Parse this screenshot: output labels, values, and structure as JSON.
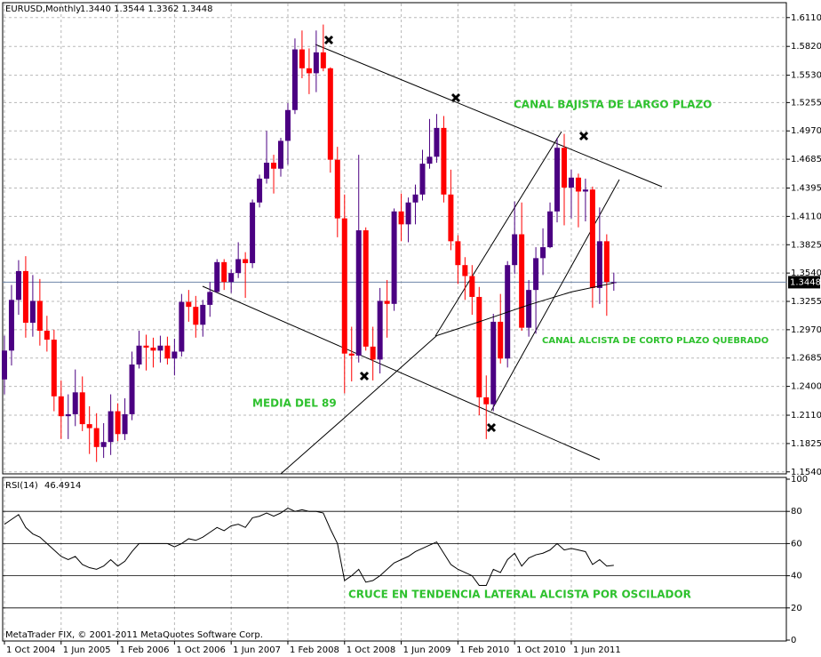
{
  "chart_data": [
    {
      "type": "candlestick",
      "title": "EURUSD,Monthly",
      "ohlc_label": "1.3440 1.3544 1.3362 1.3448",
      "up_color": "#4b0082",
      "down_color": "#ff0000",
      "price_line_color": "#6e86a8",
      "ylim": [
        1.152,
        1.626
      ],
      "xlim": [
        -0.25,
        110.35
      ],
      "grid": true,
      "yticks": [
        {
          "value": 1.611,
          "label": "1.6110"
        },
        {
          "value": 1.582,
          "label": "1.5820"
        },
        {
          "value": 1.553,
          "label": "1.5530"
        },
        1.5255,
        {
          "value": 1.497,
          "label": "1.4970"
        },
        1.4685,
        1.4395,
        {
          "value": 1.411,
          "label": "1.4110"
        },
        1.3825,
        {
          "value": 1.354,
          "label": "1.3540"
        },
        1.3255,
        {
          "value": 1.297,
          "label": "1.2970"
        },
        1.2685,
        {
          "value": 1.24,
          "label": "1.2400"
        },
        {
          "value": 1.211,
          "label": "1.2110"
        },
        1.1825,
        {
          "value": 1.154,
          "label": "1.1540"
        }
      ],
      "open": [
        1.247,
        1.276,
        1.327,
        1.356,
        1.304,
        1.326,
        1.296,
        1.287,
        1.23,
        1.21,
        1.212,
        1.234,
        1.202,
        1.198,
        1.179,
        1.184,
        1.215,
        1.192,
        1.212,
        1.262,
        1.281,
        1.279,
        1.276,
        1.281,
        1.268,
        1.275,
        1.325,
        1.32,
        1.302,
        1.322,
        1.335,
        1.365,
        1.345,
        1.354,
        1.368,
        1.364,
        1.425,
        1.449,
        1.465,
        1.459,
        1.487,
        1.518,
        1.579,
        1.56,
        1.555,
        1.576,
        1.56,
        1.468,
        1.409,
        1.273,
        1.271,
        1.397,
        1.28,
        1.267,
        1.326,
        1.323,
        1.416,
        1.403,
        1.425,
        1.433,
        1.464,
        1.471,
        1.5,
        1.433,
        1.386,
        1.362,
        1.351,
        1.33,
        1.229,
        1.222,
        1.305,
        1.268,
        1.362,
        1.393,
        1.299,
        1.337,
        1.369,
        1.38,
        1.416,
        1.48,
        1.44,
        1.45,
        1.436,
        1.438,
        1.339,
        1.386,
        1.344
      ],
      "high": [
        1.291,
        1.342,
        1.367,
        1.371,
        1.352,
        1.348,
        1.311,
        1.297,
        1.246,
        1.232,
        1.257,
        1.25,
        1.22,
        1.213,
        1.203,
        1.232,
        1.223,
        1.228,
        1.275,
        1.296,
        1.292,
        1.289,
        1.291,
        1.29,
        1.288,
        1.333,
        1.337,
        1.331,
        1.327,
        1.345,
        1.368,
        1.368,
        1.358,
        1.385,
        1.375,
        1.428,
        1.453,
        1.497,
        1.473,
        1.49,
        1.525,
        1.59,
        1.598,
        1.58,
        1.598,
        1.604,
        1.561,
        1.481,
        1.433,
        1.3,
        1.473,
        1.4,
        1.3,
        1.339,
        1.347,
        1.419,
        1.434,
        1.43,
        1.443,
        1.478,
        1.509,
        1.514,
        1.512,
        1.458,
        1.392,
        1.37,
        1.362,
        1.34,
        1.251,
        1.313,
        1.333,
        1.366,
        1.426,
        1.425,
        1.347,
        1.38,
        1.399,
        1.425,
        1.49,
        1.494,
        1.458,
        1.454,
        1.449,
        1.441,
        1.42,
        1.393,
        1.3544
      ],
      "low": [
        1.232,
        1.261,
        1.312,
        1.289,
        1.29,
        1.281,
        1.275,
        1.215,
        1.187,
        1.187,
        1.2,
        1.195,
        1.172,
        1.164,
        1.168,
        1.171,
        1.185,
        1.186,
        1.206,
        1.258,
        1.256,
        1.259,
        1.264,
        1.262,
        1.251,
        1.27,
        1.305,
        1.289,
        1.29,
        1.31,
        1.334,
        1.337,
        1.334,
        1.349,
        1.329,
        1.359,
        1.42,
        1.444,
        1.434,
        1.451,
        1.463,
        1.514,
        1.55,
        1.534,
        1.536,
        1.557,
        1.455,
        1.39,
        1.233,
        1.245,
        1.264,
        1.276,
        1.246,
        1.253,
        1.289,
        1.316,
        1.386,
        1.385,
        1.403,
        1.427,
        1.459,
        1.465,
        1.425,
        1.377,
        1.343,
        1.327,
        1.312,
        1.211,
        1.187,
        1.215,
        1.263,
        1.259,
        1.353,
        1.296,
        1.29,
        1.293,
        1.352,
        1.379,
        1.405,
        1.402,
        1.409,
        1.4,
        1.406,
        1.319,
        1.323,
        1.311,
        1.3362
      ],
      "close": [
        1.276,
        1.327,
        1.356,
        1.304,
        1.326,
        1.296,
        1.287,
        1.23,
        1.21,
        1.212,
        1.234,
        1.202,
        1.198,
        1.179,
        1.184,
        1.215,
        1.192,
        1.212,
        1.262,
        1.281,
        1.279,
        1.276,
        1.281,
        1.268,
        1.275,
        1.325,
        1.32,
        1.302,
        1.322,
        1.335,
        1.365,
        1.345,
        1.354,
        1.368,
        1.364,
        1.425,
        1.449,
        1.465,
        1.459,
        1.487,
        1.518,
        1.579,
        1.56,
        1.555,
        1.576,
        1.56,
        1.468,
        1.409,
        1.273,
        1.271,
        1.397,
        1.28,
        1.267,
        1.326,
        1.323,
        1.416,
        1.403,
        1.425,
        1.433,
        1.464,
        1.471,
        1.5,
        1.433,
        1.386,
        1.362,
        1.351,
        1.33,
        1.229,
        1.222,
        1.305,
        1.268,
        1.362,
        1.393,
        1.299,
        1.337,
        1.369,
        1.38,
        1.416,
        1.48,
        1.44,
        1.45,
        1.436,
        1.438,
        1.339,
        1.386,
        1.345,
        1.3448
      ],
      "ma": {
        "color": "#000000",
        "x": [
          39,
          48,
          55,
          61,
          67,
          74,
          80,
          86
        ],
        "values": [
          1.152,
          1.2085,
          1.253,
          1.291,
          1.305,
          1.322,
          1.335,
          1.344
        ]
      },
      "annotations": [
        "CANAL BAJISTA DE LARGO PLAZO",
        "CANAL ALCISTA DE CORTO PLAZO QUEBRADO",
        "MEDIA DEL 89"
      ]
    },
    {
      "type": "line",
      "title": "RSI(14)",
      "color": "#000000",
      "level_color": "#000000",
      "ylim": [
        0,
        100
      ],
      "yticks": [
        0,
        20,
        40,
        60,
        80,
        100
      ],
      "levels": [
        20,
        40,
        60,
        80
      ],
      "xlim": [
        -0.25,
        110.35
      ],
      "xticks": [
        {
          "value": 0,
          "label": "1 Oct 2004"
        },
        {
          "value": 8,
          "label": "1 Jun 2005"
        },
        {
          "value": 16,
          "label": "1 Feb 2006"
        },
        {
          "value": 24,
          "label": "1 Oct 2006"
        },
        {
          "value": 32,
          "label": "1 Jun 2007"
        },
        {
          "value": 40,
          "label": "1 Feb 2008"
        },
        {
          "value": 48,
          "label": "1 Oct 2008"
        },
        {
          "value": 56,
          "label": "1 Jun 2009"
        },
        {
          "value": 64,
          "label": "1 Feb 2010"
        },
        {
          "value": 72,
          "label": "1 Oct 2010"
        },
        {
          "value": 80,
          "label": "1 Jun 2011"
        }
      ],
      "values": [
        72,
        75,
        78,
        70,
        66,
        64,
        60,
        56,
        52,
        50,
        52,
        47,
        45,
        44,
        46,
        50,
        46,
        49,
        55,
        60,
        60,
        60,
        60,
        60,
        58,
        60,
        63,
        62,
        64,
        67,
        70,
        68,
        71,
        72,
        70,
        76,
        77,
        79,
        77,
        79,
        82,
        80,
        81,
        80,
        80,
        79,
        69,
        60,
        37,
        40,
        44,
        36,
        37,
        40,
        44,
        48,
        50,
        52,
        55,
        57,
        59,
        61,
        54,
        47,
        44,
        42,
        40,
        34,
        34,
        44,
        42,
        50,
        54,
        46,
        51,
        53,
        54,
        56,
        60,
        56,
        57,
        56,
        55,
        47,
        50,
        46,
        46.4914
      ],
      "annotation": "CRUCE EN TENDENCIA LATERAL ALCISTA POR OSCILADOR"
    }
  ],
  "footer": "MetaTrader FIX, © 2001-2011 MetaQuotes Software Corp."
}
